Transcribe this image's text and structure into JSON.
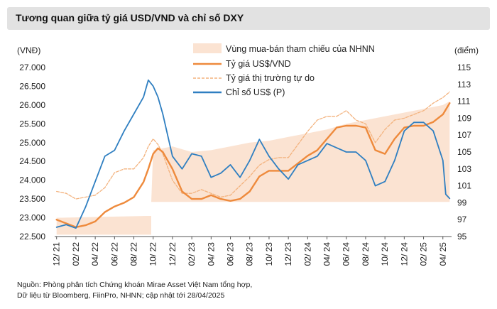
{
  "chart_data": {
    "type": "line",
    "title": "Tương quan giữa tỷ giá USD/VND và chỉ số DXY",
    "ylabel_left": "(VNĐ)",
    "ylabel_right": "(điểm)",
    "ylim_left": [
      22500,
      27000
    ],
    "ylim_right": [
      95,
      115
    ],
    "yticks_left": [
      "22.500",
      "23.000",
      "23.500",
      "24.000",
      "24.500",
      "25.000",
      "25.500",
      "26.000",
      "26.500",
      "27.000"
    ],
    "yticks_right": [
      "95",
      "97",
      "99",
      "101",
      "103",
      "105",
      "107",
      "109",
      "111",
      "113",
      "115"
    ],
    "x_tick_labels": [
      "12/ 21",
      "02/ 22",
      "04/ 22",
      "06/ 22",
      "08/ 22",
      "10/ 22",
      "12/ 22",
      "02/ 23",
      "04/ 23",
      "06/ 23",
      "08/ 23",
      "10/ 23",
      "12/ 23",
      "02/ 24",
      "04/ 24",
      "06/ 24",
      "08/ 24",
      "10/ 24",
      "12/ 24",
      "02/ 25",
      "04/ 25"
    ],
    "x_month_index": [
      0,
      2,
      4,
      6,
      8,
      10,
      12,
      14,
      16,
      18,
      20,
      22,
      24,
      26,
      28,
      30,
      32,
      34,
      36,
      38,
      40
    ],
    "x_range": [
      -0.2,
      40.9
    ],
    "legend": [
      {
        "key": "band",
        "label": "Vùng mua-bán tham chiếu của NHNN",
        "color": "#fbe3d2"
      },
      {
        "key": "official",
        "label": "Tỷ giá US$/VND",
        "color": "#ee8a3c"
      },
      {
        "key": "free",
        "label": "Tỷ giá thị trường tự do",
        "color": "#f3b27d"
      },
      {
        "key": "dxy",
        "label": "Chỉ số US$ (P)",
        "color": "#2f7fc1"
      }
    ],
    "series": [
      {
        "name": "Vùng mua-bán tham chiếu của NHNN (trên)",
        "axis": "left",
        "x": [
          0,
          9.8,
          9.8,
          10,
          12,
          14,
          16,
          18,
          20,
          22,
          24,
          26,
          28,
          30,
          32,
          34,
          36,
          38,
          40,
          40.7
        ],
        "values": [
          23000,
          23050,
          23400,
          24800,
          24900,
          24750,
          24800,
          24900,
          25000,
          25050,
          25150,
          25250,
          25350,
          25500,
          25600,
          25700,
          25800,
          25900,
          26000,
          26100
        ]
      },
      {
        "name": "Vùng mua-bán tham chiếu của NHNN (dưới)",
        "axis": "left",
        "x": [
          0,
          9.8,
          9.8,
          10,
          18,
          28,
          40,
          40.7
        ],
        "values": [
          22550,
          22550,
          23420,
          23420,
          23420,
          23420,
          23420,
          23420
        ]
      },
      {
        "name": "Tỷ giá US$/VND",
        "axis": "left",
        "x": [
          0,
          1,
          2,
          3,
          4,
          5,
          6,
          7,
          8,
          9,
          9.5,
          10,
          10.5,
          11,
          12,
          13,
          14,
          15,
          16,
          17,
          18,
          19,
          20,
          21,
          22,
          23,
          24,
          25,
          26,
          27,
          28,
          29,
          30,
          31,
          32,
          33,
          34,
          35,
          36,
          37,
          38,
          39,
          40,
          40.7
        ],
        "values": [
          22950,
          22850,
          22750,
          22800,
          22900,
          23150,
          23300,
          23400,
          23550,
          23950,
          24300,
          24700,
          24850,
          24750,
          24300,
          23700,
          23500,
          23500,
          23600,
          23500,
          23450,
          23500,
          23700,
          24100,
          24250,
          24250,
          24250,
          24450,
          24650,
          24800,
          25100,
          25400,
          25450,
          25450,
          25400,
          24800,
          24700,
          25100,
          25400,
          25450,
          25450,
          25550,
          25750,
          26050
        ]
      },
      {
        "name": "Tỷ giá thị trường tự do",
        "axis": "left",
        "x": [
          0,
          1,
          2,
          3,
          4,
          5,
          6,
          7,
          8,
          9,
          9.5,
          10,
          10.5,
          11,
          12,
          13,
          14,
          15,
          16,
          17,
          18,
          19,
          20,
          21,
          22,
          23,
          24,
          25,
          26,
          27,
          28,
          29,
          30,
          31,
          32,
          33,
          34,
          35,
          36,
          37,
          38,
          39,
          40,
          40.7
        ],
        "values": [
          23700,
          23650,
          23500,
          23550,
          23600,
          23800,
          24200,
          24300,
          24300,
          24600,
          24900,
          25100,
          24950,
          24700,
          24000,
          23650,
          23650,
          23750,
          23650,
          23550,
          23600,
          23850,
          24100,
          24400,
          24550,
          24600,
          24600,
          24950,
          25300,
          25600,
          25700,
          25700,
          25850,
          25600,
          25500,
          25000,
          25350,
          25600,
          25650,
          25750,
          25850,
          26050,
          26200,
          26350
        ]
      },
      {
        "name": "Chỉ số US$ (P)",
        "axis": "right",
        "x": [
          0,
          1,
          2,
          3,
          4,
          5,
          6,
          7,
          8,
          9,
          9.5,
          10,
          10.5,
          11,
          12,
          13,
          14,
          15,
          16,
          17,
          18,
          19,
          20,
          21,
          22,
          23,
          24,
          25,
          26,
          27,
          28,
          29,
          30,
          31,
          32,
          33,
          34,
          35,
          36,
          37,
          38,
          39,
          40,
          40.3,
          40.7
        ],
        "values": [
          96.1,
          96.4,
          96.0,
          98.5,
          101.5,
          104.5,
          105.2,
          107.5,
          109.5,
          111.5,
          113.5,
          112.8,
          111.5,
          109.5,
          104.5,
          103.0,
          104.8,
          104.5,
          102.0,
          102.5,
          103.5,
          102.0,
          104.0,
          106.5,
          104.5,
          103.0,
          101.8,
          103.5,
          104.0,
          104.5,
          106.0,
          105.5,
          105.0,
          105.0,
          104.0,
          101.0,
          101.5,
          104.0,
          107.5,
          108.5,
          108.5,
          107.5,
          104.0,
          100.0,
          99.5
        ]
      }
    ]
  }
}
